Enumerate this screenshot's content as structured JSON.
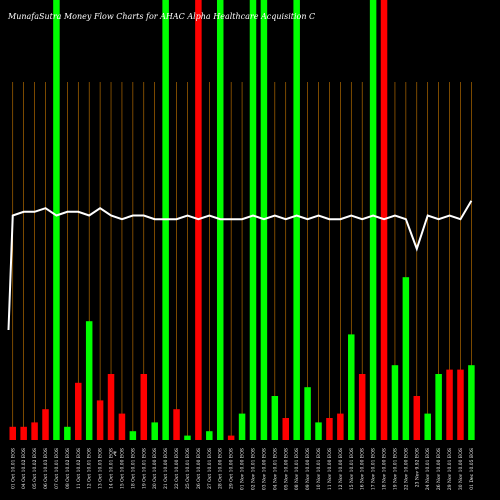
{
  "chart_data": {
    "type": "bar",
    "title": "MunafaSutra  Money Flow  Charts for AHAC                              Alpha  Healthcare   Acquisition   C",
    "currency_label": "₹",
    "colors": {
      "background": "#000000",
      "positive": "#00ff00",
      "negative": "#ff0000",
      "gridline": "#cc7a00",
      "price_line": "#ffffff"
    },
    "categories": [
      "01 Oct 10.01 EOS",
      "04 Oct 10.02 EOS",
      "05 Oct 10.02 EOS",
      "06 Oct 10.03 EOS",
      "07 Oct 10.01 EOS",
      "08 Oct 10.02 EOS",
      "11 Oct 10.02 EOS",
      "12 Oct 10.01 EOS",
      "13 Oct 10.03 EOS",
      "14 Oct 10.01 EOS",
      "15 Oct 10.00 EOS",
      "18 Oct 10.01 EOS",
      "19 Oct 10.01 EOS",
      "20 Oct 10.00 EOS",
      "21 Oct 10.00 EOS",
      "22 Oct 10.00 EOS",
      "25 Oct 10.01 EOS",
      "26 Oct 10.00 EOS",
      "27 Oct 10.01 EOS",
      "28 Oct 10.00 EOS",
      "29 Oct 10.00 EOS",
      "01 Nov 10.00 EOS",
      "02 Nov 10.01 EOS",
      "03 Nov 10.00 EOS",
      "04 Nov 10.01 EOS",
      "05 Nov 10.00 EOS",
      "08 Nov 10.01 EOS",
      "09 Nov 10.00 EOS",
      "10 Nov 10.01 EOS",
      "11 Nov 10.00 EOS",
      "12 Nov 10.00 EOS",
      "15 Nov 10.01 EOS",
      "16 Nov 10.00 EOS",
      "17 Nov 10.01 EOS",
      "18 Nov 10.00 EOS",
      "19 Nov 10.01 EOS",
      "22 Nov 10.00 EOS",
      "23 Nov 9.92 EOS",
      "24 Nov 10.01 EOS",
      "26 Nov 10.00 EOS",
      "29 Nov 10.01 EOS",
      "30 Nov 10.00 EOS",
      "01 Dec 10.05 EOS"
    ],
    "directions": [
      "down",
      "down",
      "down",
      "down",
      "up",
      "up",
      "down",
      "up",
      "down",
      "down",
      "down",
      "up",
      "down",
      "up",
      "up",
      "down",
      "up",
      "down",
      "up",
      "up",
      "down",
      "up",
      "up",
      "up",
      "up",
      "down",
      "up",
      "up",
      "up",
      "down",
      "down",
      "up",
      "down",
      "up",
      "down",
      "up",
      "up",
      "down",
      "up",
      "up",
      "down",
      "down",
      "up"
    ],
    "values": [
      3,
      3,
      4,
      7,
      100,
      3,
      13,
      27,
      9,
      15,
      6,
      2,
      15,
      4,
      100,
      7,
      1,
      100,
      2,
      100,
      1,
      6,
      100,
      100,
      10,
      5,
      100,
      12,
      4,
      5,
      6,
      24,
      15,
      100,
      100,
      17,
      37,
      10,
      6,
      15,
      16,
      16,
      17
    ],
    "ylim": [
      0,
      100
    ],
    "price_series_label": "Price",
    "price": [
      10.01,
      10.02,
      10.02,
      10.03,
      10.01,
      10.02,
      10.02,
      10.01,
      10.03,
      10.01,
      10.0,
      10.01,
      10.01,
      10.0,
      10.0,
      10.0,
      10.01,
      10.0,
      10.01,
      10.0,
      10.0,
      10.0,
      10.01,
      10.0,
      10.01,
      10.0,
      10.01,
      10.0,
      10.01,
      10.0,
      10.0,
      10.01,
      10.0,
      10.01,
      10.0,
      10.01,
      10.0,
      9.92,
      10.01,
      10.0,
      10.01,
      10.0,
      10.05
    ],
    "grid": true,
    "legend": "none"
  }
}
